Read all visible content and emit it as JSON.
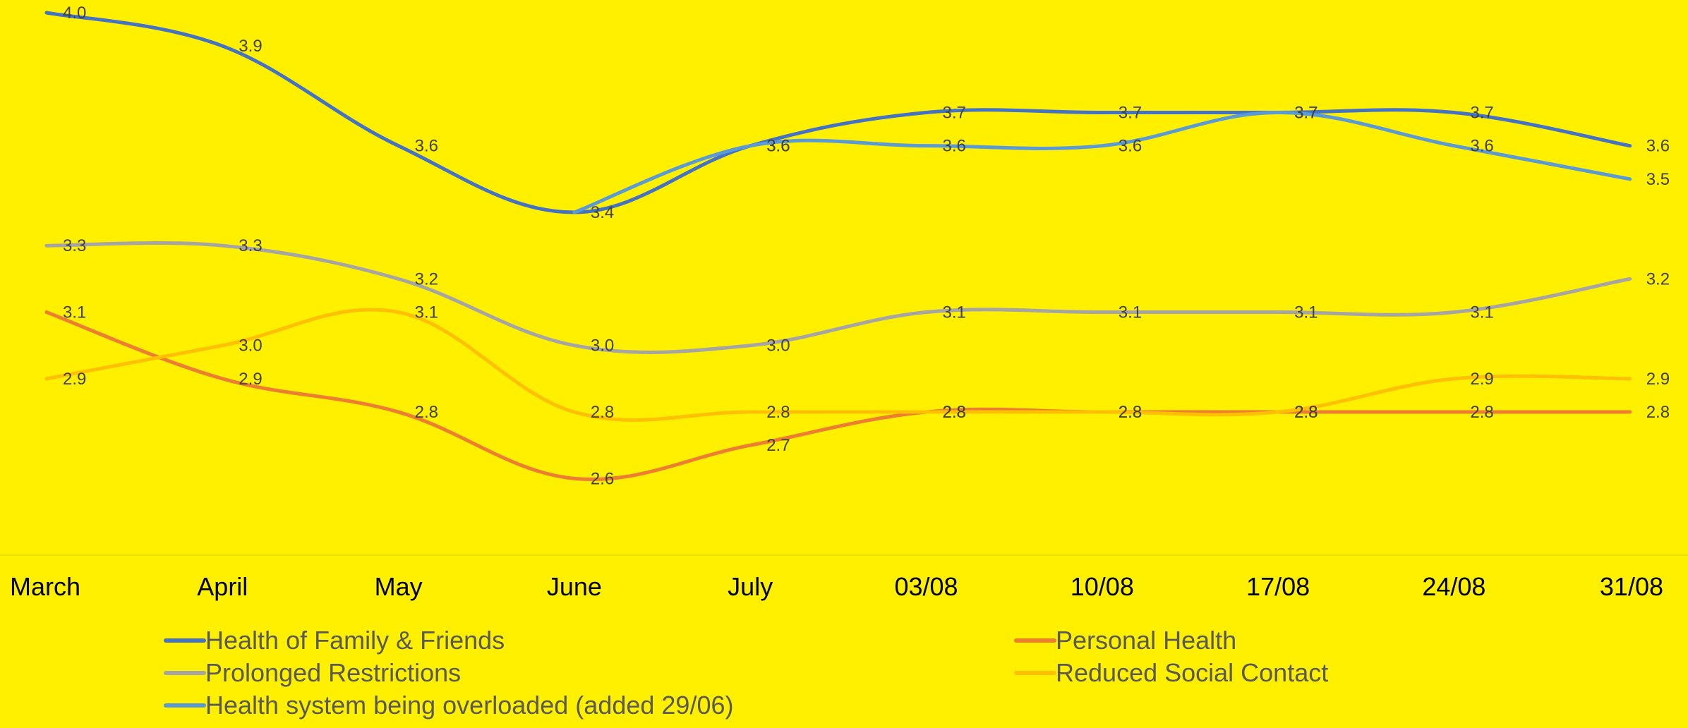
{
  "chart_data": {
    "type": "line",
    "title": "",
    "xlabel": "",
    "ylabel": "",
    "categories": [
      "March",
      "April",
      "May",
      "June",
      "July",
      "03/08",
      "10/08",
      "17/08",
      "24/08",
      "31/08"
    ],
    "ylim": [
      2.4,
      4.0
    ],
    "grid": false,
    "legend_position": "bottom",
    "series": [
      {
        "name": "Health of Family & Friends",
        "color": "#4472C4",
        "values": [
          4.0,
          3.9,
          3.6,
          3.4,
          3.6,
          3.7,
          3.7,
          3.7,
          3.7,
          3.6
        ],
        "labels": [
          "4.0",
          "3.9",
          "3.6",
          "3.4",
          "3.6",
          "3.7",
          "3.7",
          "3.7",
          "3.7",
          "3.6"
        ]
      },
      {
        "name": "Personal Health",
        "color": "#ED7D31",
        "values": [
          3.1,
          2.9,
          2.8,
          2.6,
          2.7,
          2.8,
          2.8,
          2.8,
          2.8,
          2.8
        ],
        "labels": [
          "3.1",
          "2.9",
          "2.8",
          "2.6",
          "2.7",
          "2.8",
          "2.8",
          "2.8",
          "2.8",
          "2.8"
        ]
      },
      {
        "name": "Prolonged Restrictions",
        "color": "#A5A5A5",
        "values": [
          3.3,
          3.3,
          3.2,
          3.0,
          3.0,
          3.1,
          3.1,
          3.1,
          3.1,
          3.2
        ],
        "labels": [
          "3.3",
          "3.3",
          "3.2",
          "3.0",
          "3.0",
          "3.1",
          "3.1",
          "3.1",
          "3.1",
          "3.2"
        ]
      },
      {
        "name": "Reduced Social Contact",
        "color": "#FFC000",
        "values": [
          2.9,
          3.0,
          3.1,
          2.8,
          2.8,
          2.8,
          2.8,
          2.8,
          2.9,
          2.9
        ],
        "labels": [
          "2.9",
          "3.0",
          "3.1",
          "2.8",
          "2.8",
          "2.8",
          "2.8",
          "2.8",
          "2.9",
          "2.9"
        ]
      },
      {
        "name": "Health system being overloaded (added 29/06)",
        "color": "#5B9BD5",
        "values": [
          null,
          null,
          null,
          3.4,
          3.6,
          3.6,
          3.6,
          3.7,
          3.6,
          3.5
        ],
        "labels": [
          null,
          null,
          null,
          "",
          "3.6",
          "3.6",
          "3.6",
          "3.7",
          "3.6",
          "3.5"
        ]
      }
    ]
  }
}
